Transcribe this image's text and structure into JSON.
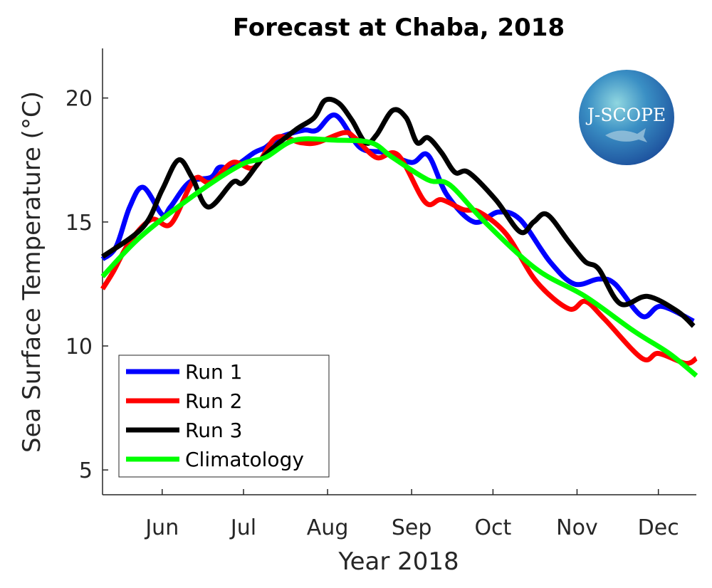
{
  "chart_data": {
    "type": "line",
    "title": "Forecast at Chaba, 2018",
    "xlabel": "Year 2018",
    "ylabel": "Sea Surface Temperature (°C)",
    "xlim": [
      "2018-05-10",
      "2018-12-15"
    ],
    "ylim": [
      4,
      22
    ],
    "xticks": [
      {
        "label": "Jun",
        "date": "2018-06-01"
      },
      {
        "label": "Jul",
        "date": "2018-07-01"
      },
      {
        "label": "Aug",
        "date": "2018-08-01"
      },
      {
        "label": "Sep",
        "date": "2018-09-01"
      },
      {
        "label": "Oct",
        "date": "2018-10-01"
      },
      {
        "label": "Nov",
        "date": "2018-11-01"
      },
      {
        "label": "Dec",
        "date": "2018-12-01"
      }
    ],
    "yticks": [
      5,
      10,
      15,
      20
    ],
    "grid": false,
    "legend": "bottom-left",
    "series": [
      {
        "name": "Run 1",
        "color": "#0000ff",
        "x": [
          "2018-05-10",
          "2018-05-15",
          "2018-05-20",
          "2018-05-25",
          "2018-06-01",
          "2018-06-04",
          "2018-06-11",
          "2018-06-19",
          "2018-06-22",
          "2018-06-27",
          "2018-07-05",
          "2018-07-09",
          "2018-07-14",
          "2018-07-23",
          "2018-07-28",
          "2018-08-04",
          "2018-08-13",
          "2018-08-22",
          "2018-09-01",
          "2018-09-07",
          "2018-09-14",
          "2018-09-24",
          "2018-10-03",
          "2018-10-11",
          "2018-10-22",
          "2018-10-31",
          "2018-11-09",
          "2018-11-15",
          "2018-11-25",
          "2018-12-02",
          "2018-12-14"
        ],
        "y": [
          13.5,
          14.0,
          15.6,
          16.4,
          15.3,
          15.6,
          16.6,
          16.8,
          17.2,
          17.2,
          17.8,
          18.0,
          18.4,
          18.7,
          18.7,
          19.3,
          18.0,
          17.8,
          17.4,
          17.7,
          16.1,
          15.0,
          15.4,
          15.1,
          13.4,
          12.5,
          12.7,
          12.5,
          11.2,
          11.6,
          11.0
        ]
      },
      {
        "name": "Run 2",
        "color": "#ff0000",
        "x": [
          "2018-05-10",
          "2018-05-14",
          "2018-05-20",
          "2018-05-28",
          "2018-06-04",
          "2018-06-11",
          "2018-06-14",
          "2018-06-19",
          "2018-06-27",
          "2018-07-05",
          "2018-07-13",
          "2018-07-22",
          "2018-07-28",
          "2018-08-07",
          "2018-08-11",
          "2018-08-19",
          "2018-08-27",
          "2018-09-06",
          "2018-09-12",
          "2018-09-20",
          "2018-09-26",
          "2018-10-06",
          "2018-10-17",
          "2018-10-29",
          "2018-11-04",
          "2018-11-11",
          "2018-11-25",
          "2018-12-01",
          "2018-12-11",
          "2018-12-15"
        ],
        "y": [
          12.3,
          13.0,
          14.2,
          15.1,
          14.9,
          16.4,
          16.8,
          16.6,
          17.4,
          17.2,
          18.4,
          18.2,
          18.2,
          18.6,
          18.4,
          17.6,
          17.7,
          15.8,
          15.9,
          15.5,
          15.4,
          14.5,
          12.6,
          11.5,
          11.8,
          11.1,
          9.5,
          9.7,
          9.3,
          9.5
        ]
      },
      {
        "name": "Run 3",
        "color": "#000000",
        "x": [
          "2018-05-10",
          "2018-05-25",
          "2018-06-01",
          "2018-06-07",
          "2018-06-12",
          "2018-06-18",
          "2018-06-27",
          "2018-07-01",
          "2018-07-09",
          "2018-07-20",
          "2018-07-27",
          "2018-07-31",
          "2018-08-05",
          "2018-08-10",
          "2018-08-15",
          "2018-08-19",
          "2018-08-25",
          "2018-08-30",
          "2018-09-03",
          "2018-09-07",
          "2018-09-12",
          "2018-09-17",
          "2018-09-22",
          "2018-10-02",
          "2018-10-11",
          "2018-10-16",
          "2018-10-21",
          "2018-10-29",
          "2018-11-04",
          "2018-11-09",
          "2018-11-17",
          "2018-11-27",
          "2018-12-08",
          "2018-12-14"
        ],
        "y": [
          13.6,
          14.8,
          16.3,
          17.5,
          16.8,
          15.6,
          16.6,
          16.6,
          17.7,
          18.7,
          19.2,
          19.9,
          19.8,
          19.1,
          18.2,
          18.5,
          19.5,
          19.2,
          18.2,
          18.4,
          17.8,
          17.0,
          17.0,
          15.9,
          14.6,
          15.0,
          15.3,
          14.2,
          13.4,
          13.1,
          11.7,
          12.0,
          11.4,
          10.8
        ]
      },
      {
        "name": "Climatology",
        "color": "#00ff00",
        "x": [
          "2018-05-10",
          "2018-05-24",
          "2018-06-13",
          "2018-06-30",
          "2018-07-09",
          "2018-07-20",
          "2018-08-04",
          "2018-08-17",
          "2018-08-25",
          "2018-09-07",
          "2018-09-15",
          "2018-09-28",
          "2018-10-17",
          "2018-11-04",
          "2018-11-22",
          "2018-12-05",
          "2018-12-15"
        ],
        "y": [
          12.8,
          14.4,
          16.1,
          17.3,
          17.6,
          18.3,
          18.3,
          18.2,
          17.6,
          16.7,
          16.5,
          15.0,
          13.1,
          12.0,
          10.6,
          9.7,
          8.8
        ]
      }
    ]
  },
  "logo": {
    "text": "J-SCOPE"
  }
}
